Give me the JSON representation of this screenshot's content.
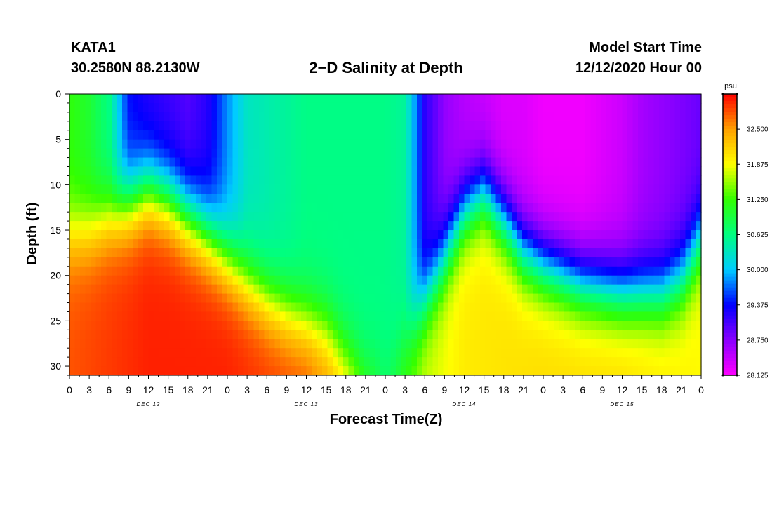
{
  "header": {
    "station": "KATA1",
    "coords": "30.2580N 88.2130W",
    "title": "2−D Salinity at Depth",
    "model_start_label": "Model Start Time",
    "model_start_value": "12/12/2020 Hour 00"
  },
  "chart_data": {
    "type": "heatmap",
    "title": "2−D Salinity at Depth",
    "xlabel": "Forecast Time(Z)",
    "ylabel": "Depth (ft)",
    "x_range_hours": [
      0,
      96
    ],
    "x_tick_step_hours": 3,
    "x_tick_labels": [
      "0",
      "3",
      "6",
      "9",
      "12",
      "15",
      "18",
      "21",
      "0",
      "3",
      "6",
      "9",
      "12",
      "15",
      "18",
      "21",
      "0",
      "3",
      "6",
      "9",
      "12",
      "15",
      "18",
      "21",
      "0",
      "3",
      "6",
      "9",
      "12",
      "15",
      "18",
      "21",
      "0"
    ],
    "date_labels": [
      {
        "text": "DEC 12",
        "hour": 12
      },
      {
        "text": "DEC 13",
        "hour": 36
      },
      {
        "text": "DEC 14",
        "hour": 60
      },
      {
        "text": "DEC 15",
        "hour": 84
      }
    ],
    "y_range_ft": [
      0,
      31
    ],
    "y_ticks": [
      0,
      5,
      10,
      15,
      20,
      25,
      30
    ],
    "colorbar": {
      "unit": "psu",
      "min": 28.125,
      "max": 33.125,
      "tick_values": [
        28.125,
        28.75,
        29.375,
        30.0,
        30.625,
        31.25,
        31.875,
        32.5
      ],
      "tick_labels": [
        "28.125",
        "28.750",
        "29.375",
        "30.000",
        "30.625",
        "31.250",
        "31.875",
        "32.500"
      ],
      "colors": [
        "#ff00ff",
        "#8a00ff",
        "#0000ff",
        "#00ccff",
        "#00ff80",
        "#33ff00",
        "#ffff00",
        "#ffa000",
        "#ff0000"
      ]
    },
    "halocline": {
      "description": "depth (ft) of the transition layer vs forecast hour",
      "hours": [
        0,
        3,
        6,
        9,
        12,
        15,
        18,
        21,
        24,
        27,
        30,
        33,
        36,
        39,
        42,
        45,
        48,
        51,
        54,
        57,
        60,
        63,
        66,
        69,
        72,
        75,
        78,
        81,
        84,
        87,
        90,
        93,
        96
      ],
      "depth_ft": [
        15.5,
        15.0,
        13.5,
        12.0,
        10.5,
        11.5,
        13.5,
        15.5,
        18.0,
        20.5,
        22.5,
        24.0,
        25.0,
        26.0,
        29.0,
        31.0,
        30.0,
        27.0,
        23.0,
        18.0,
        13.0,
        11.0,
        14.0,
        17.5,
        19.0,
        20.0,
        21.0,
        21.5,
        22.0,
        22.0,
        22.0,
        20.5,
        16.0
      ]
    },
    "surface_salinity_psu": {
      "hours": [
        0,
        3,
        6,
        9,
        12,
        15,
        18,
        21,
        24,
        27,
        30,
        33,
        36,
        39,
        42,
        45,
        48,
        51,
        54,
        57,
        60,
        63,
        66,
        69,
        72,
        75,
        78,
        81,
        84,
        87,
        90,
        93,
        96
      ],
      "values": [
        31.2,
        31.0,
        30.6,
        29.4,
        29.2,
        29.1,
        29.0,
        29.2,
        29.8,
        30.3,
        30.4,
        30.5,
        30.6,
        30.6,
        30.6,
        30.6,
        30.6,
        30.5,
        29.2,
        28.7,
        28.5,
        28.4,
        28.3,
        28.3,
        28.2,
        28.2,
        28.2,
        28.3,
        28.4,
        28.6,
        28.7,
        28.8,
        28.9
      ]
    },
    "bottom_salinity_psu": {
      "hours": [
        0,
        12,
        24,
        36,
        42,
        48,
        54,
        60,
        72,
        84,
        96
      ],
      "values": [
        32.8,
        33.0,
        33.0,
        32.8,
        32.3,
        30.8,
        31.7,
        32.0,
        32.1,
        32.1,
        31.9
      ]
    }
  }
}
